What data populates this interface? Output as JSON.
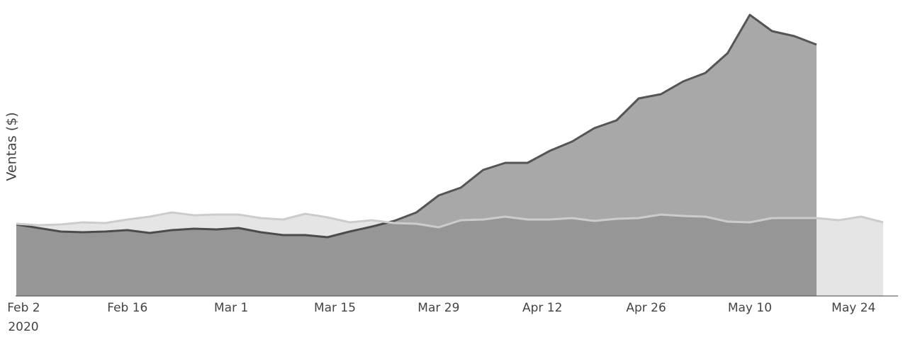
{
  "chart_data": {
    "type": "area",
    "y_label": "Ventas ($)",
    "x": [
      "2020-02-01",
      "2020-02-04",
      "2020-02-07",
      "2020-02-10",
      "2020-02-13",
      "2020-02-16",
      "2020-02-19",
      "2020-02-22",
      "2020-02-25",
      "2020-02-28",
      "2020-03-02",
      "2020-03-05",
      "2020-03-08",
      "2020-03-11",
      "2020-03-14",
      "2020-03-17",
      "2020-03-20",
      "2020-03-23",
      "2020-03-26",
      "2020-03-29",
      "2020-04-01",
      "2020-04-04",
      "2020-04-07",
      "2020-04-10",
      "2020-04-13",
      "2020-04-16",
      "2020-04-19",
      "2020-04-22",
      "2020-04-25",
      "2020-04-28",
      "2020-05-01",
      "2020-05-04",
      "2020-05-07",
      "2020-05-10",
      "2020-05-13",
      "2020-05-16",
      "2020-05-19",
      "2020-05-22",
      "2020-05-25",
      "2020-05-28"
    ],
    "series": [
      {
        "color": "#555555",
        "values": [
          101,
          96,
          91,
          90,
          91,
          93,
          89,
          93,
          95,
          94,
          96,
          90,
          86,
          86,
          83,
          91,
          98,
          106,
          118,
          142,
          153,
          178,
          188,
          188,
          205,
          218,
          237,
          248,
          279,
          285,
          303,
          315,
          343,
          397,
          374,
          367,
          355,
          null,
          null,
          null
        ]
      },
      {
        "color": "#cccccc",
        "values": [
          102,
          100,
          101,
          104,
          103,
          108,
          112,
          118,
          114,
          115,
          115,
          110,
          108,
          116,
          111,
          104,
          107,
          103,
          102,
          97,
          107,
          108,
          112,
          108,
          108,
          110,
          106,
          109,
          110,
          115,
          113,
          112,
          105,
          104,
          110,
          110,
          110,
          107,
          112,
          104
        ]
      }
    ],
    "xlim": [
      "2020-02-01",
      "2020-05-30"
    ],
    "ylim": [
      0,
      400
    ],
    "xticks": [
      {
        "value": "2020-02-02",
        "label": "Feb 2"
      },
      {
        "value": "2020-02-16",
        "label": "Feb 16"
      },
      {
        "value": "2020-03-01",
        "label": "Mar 1"
      },
      {
        "value": "2020-03-15",
        "label": "Mar 15"
      },
      {
        "value": "2020-03-29",
        "label": "Mar 29"
      },
      {
        "value": "2020-04-12",
        "label": "Apr 12"
      },
      {
        "value": "2020-04-26",
        "label": "Apr 26"
      },
      {
        "value": "2020-05-10",
        "label": "May 10"
      },
      {
        "value": "2020-05-24",
        "label": "May 24"
      }
    ],
    "xtick_year": "2020",
    "grid": false
  }
}
